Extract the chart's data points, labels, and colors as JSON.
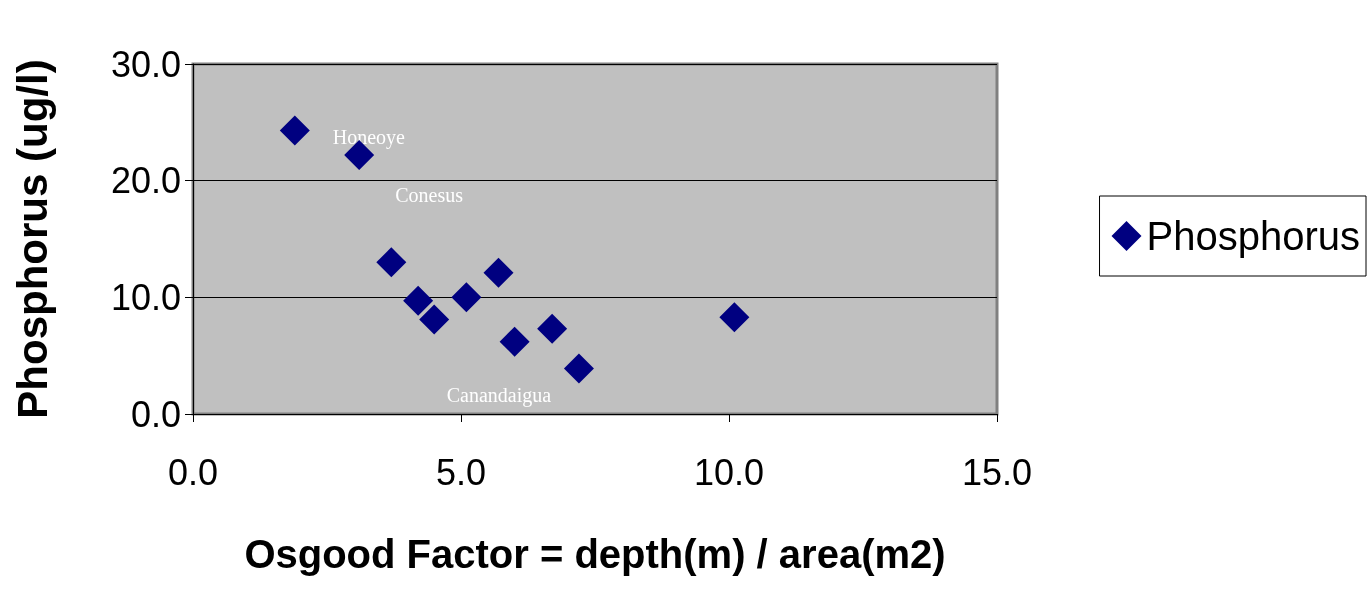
{
  "chart_data": {
    "type": "scatter",
    "xlabel": "Osgood Factor = depth(m) / area(m2)",
    "ylabel": "Phosphorus (ug/l)",
    "x": [
      1.9,
      3.1,
      3.7,
      4.2,
      4.5,
      5.1,
      5.7,
      6.0,
      6.7,
      7.2,
      10.1
    ],
    "series": [
      {
        "name": "Phosphorus",
        "color": "#000080",
        "values": [
          24.3,
          22.2,
          13.0,
          9.7,
          8.1,
          10.0,
          12.1,
          6.2,
          7.3,
          3.9,
          8.3
        ]
      }
    ],
    "xlim": [
      0,
      15
    ],
    "xticks": [
      {
        "value": 0,
        "label": "0.0"
      },
      {
        "value": 5,
        "label": "5.0"
      },
      {
        "value": 10,
        "label": "10.0"
      },
      {
        "value": 15,
        "label": "15.0"
      }
    ],
    "ylim": [
      0,
      30
    ],
    "yticks": [
      {
        "value": 0,
        "label": "0.0"
      },
      {
        "value": 10,
        "label": "10.0"
      },
      {
        "value": 20,
        "label": "20.0"
      },
      {
        "value": 30,
        "label": "30.0"
      }
    ],
    "annotations": [
      {
        "text": "Honeoye",
        "x": 1.9,
        "y": 24.3
      },
      {
        "text": "Conesus",
        "x": 3.1,
        "y": 22.2
      },
      {
        "text": "Canandaigua",
        "x": 7.2,
        "y": 3.9
      }
    ],
    "grid": "y",
    "legend": "right",
    "marker": "diamond"
  }
}
